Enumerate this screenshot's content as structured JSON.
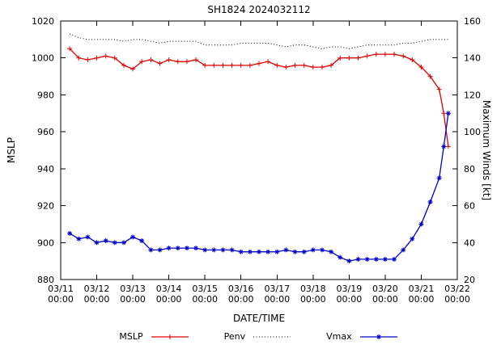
{
  "chart_data": {
    "type": "line",
    "title": "SH1824 2024032112",
    "xlabel": "DATE/TIME",
    "ylabel_left": "MSLP",
    "ylabel_right": "Maximum Winds [kt]",
    "xlim": [
      0,
      11
    ],
    "ylim_left": [
      880,
      1020
    ],
    "ylim_right": [
      20,
      160
    ],
    "x_ticks": [
      0,
      1,
      2,
      3,
      4,
      5,
      6,
      7,
      8,
      9,
      10,
      11
    ],
    "x_tick_labels": [
      [
        "03/11",
        "00:00"
      ],
      [
        "03/12",
        "00:00"
      ],
      [
        "03/13",
        "00:00"
      ],
      [
        "03/14",
        "00:00"
      ],
      [
        "03/15",
        "00:00"
      ],
      [
        "03/16",
        "00:00"
      ],
      [
        "03/17",
        "00:00"
      ],
      [
        "03/18",
        "00:00"
      ],
      [
        "03/19",
        "00:00"
      ],
      [
        "03/20",
        "00:00"
      ],
      [
        "03/21",
        "00:00"
      ],
      [
        "03/22",
        "00:00"
      ]
    ],
    "left_ticks": [
      880,
      900,
      920,
      940,
      960,
      980,
      1000,
      1020
    ],
    "right_ticks": [
      20,
      40,
      60,
      80,
      100,
      120,
      140,
      160
    ],
    "x_days": [
      0.25,
      0.5,
      0.75,
      1,
      1.25,
      1.5,
      1.75,
      2,
      2.25,
      2.5,
      2.75,
      3,
      3.25,
      3.5,
      3.75,
      4,
      4.25,
      4.5,
      4.75,
      5,
      5.25,
      5.5,
      5.75,
      6,
      6.25,
      6.5,
      6.75,
      7,
      7.25,
      7.5,
      7.75,
      8,
      8.25,
      8.5,
      8.75,
      9,
      9.25,
      9.5,
      9.75,
      10,
      10.25,
      10.5,
      10.625,
      10.75
    ],
    "series": [
      {
        "name": "MSLP",
        "axis": "left",
        "color": "#e00000",
        "line": "solid",
        "marker": "plus",
        "y": [
          1005,
          1000,
          999,
          1000,
          1001,
          1000,
          996,
          994,
          998,
          999,
          997,
          999,
          998,
          998,
          999,
          996,
          996,
          996,
          996,
          996,
          996,
          997,
          998,
          996,
          995,
          996,
          996,
          995,
          995,
          996,
          1000,
          1000,
          1000,
          1001,
          1002,
          1002,
          1002,
          1001,
          999,
          995,
          990,
          983,
          970,
          952
        ]
      },
      {
        "name": "Penv",
        "axis": "left",
        "color": "#000000",
        "line": "dotted",
        "marker": "none",
        "y": [
          1013,
          1011,
          1010,
          1010,
          1010,
          1010,
          1009,
          1010,
          1010,
          1009,
          1008,
          1009,
          1009,
          1009,
          1009,
          1007,
          1007,
          1007,
          1007,
          1008,
          1008,
          1008,
          1008,
          1007,
          1006,
          1007,
          1007,
          1006,
          1005,
          1006,
          1006,
          1005,
          1006,
          1007,
          1007,
          1007,
          1007,
          1008,
          1008,
          1009,
          1010,
          1010,
          1010,
          1010
        ]
      },
      {
        "name": "Vmax",
        "axis": "right",
        "color": "#0000cc",
        "line": "solid",
        "marker": "star",
        "y": [
          45,
          42,
          43,
          40,
          41,
          40,
          40,
          43,
          41,
          36,
          36,
          37,
          37,
          37,
          37,
          36,
          36,
          36,
          36,
          35,
          35,
          35,
          35,
          35,
          36,
          35,
          35,
          36,
          36,
          35,
          32,
          30,
          31,
          31,
          31,
          31,
          31,
          36,
          42,
          50,
          62,
          75,
          92,
          110
        ]
      }
    ],
    "legend": {
      "position": "bottom-center",
      "order": [
        "MSLP",
        "Penv",
        "Vmax"
      ]
    }
  }
}
